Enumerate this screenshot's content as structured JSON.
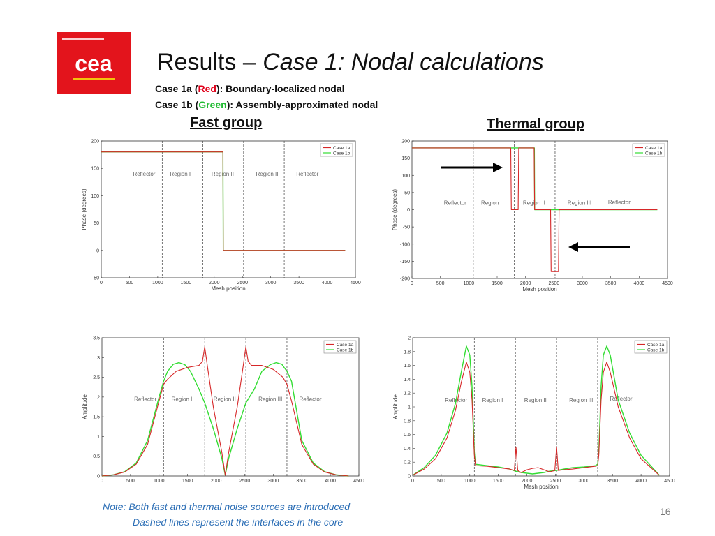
{
  "slide": {
    "title_main": "Results – ",
    "title_italic": "Case 1: Nodal calculations",
    "case1a": {
      "pre": "Case 1a (",
      "color_word": "Red",
      "post": "): Boundary-localized nodal"
    },
    "case1b": {
      "pre": "Case 1b (",
      "color_word": "Green",
      "post": "): Assembly-approximated nodal"
    },
    "fast_group": "Fast group",
    "thermal_group": "Thermal group",
    "note_line1": "Note: Both fast and thermal noise sources are introduced",
    "note_line2": "Dashed lines represent the interfaces in the core",
    "page_number": "16",
    "logo_text": "cea",
    "logo_color": "#e3141c"
  },
  "chart_data": [
    {
      "id": "fast-phase",
      "type": "line",
      "xlabel": "Mesh position",
      "ylabel": "Phase (degrees)",
      "xlim": [
        0,
        4500
      ],
      "ylim": [
        -50,
        200
      ],
      "xticks": [
        "0",
        "500",
        "1000",
        "1500",
        "2000",
        "2500",
        "3000",
        "3500",
        "4000",
        "4500"
      ],
      "yticks": [
        "-50",
        "0",
        "50",
        "100",
        "150",
        "200"
      ],
      "interfaces": [
        1080,
        1800,
        2520,
        3240
      ],
      "regions": [
        {
          "label": "Reflector",
          "x": 760,
          "y": 140
        },
        {
          "label": "Region I",
          "x": 1400,
          "y": 140
        },
        {
          "label": "Region II",
          "x": 2150,
          "y": 140
        },
        {
          "label": "Region III",
          "x": 2950,
          "y": 140
        },
        {
          "label": "Reflector",
          "x": 3650,
          "y": 140
        }
      ],
      "legend": {
        "position": "top-right",
        "entries": [
          "Case 1a",
          "Case 1b"
        ]
      },
      "series": [
        {
          "name": "Case 1a",
          "color": "#d62728",
          "x": [
            0,
            2155,
            2160,
            4320
          ],
          "y": [
            180,
            180,
            0,
            0
          ]
        },
        {
          "name": "Case 1b",
          "color": "#33dd33",
          "x": [
            0,
            2155,
            2160,
            4320
          ],
          "y": [
            180,
            180,
            0,
            0
          ]
        }
      ]
    },
    {
      "id": "thermal-phase",
      "type": "line",
      "xlabel": "Mesh position",
      "ylabel": "Phase (degrees)",
      "xlim": [
        0,
        4500
      ],
      "ylim": [
        -200,
        200
      ],
      "xticks": [
        "0",
        "500",
        "1000",
        "1500",
        "2000",
        "2500",
        "3000",
        "3500",
        "4000",
        "4500"
      ],
      "yticks": [
        "-200",
        "-150",
        "-100",
        "-50",
        "0",
        "50",
        "100",
        "150",
        "200"
      ],
      "interfaces": [
        1080,
        1800,
        2520,
        3240
      ],
      "regions": [
        {
          "label": "Reflector",
          "x": 760,
          "y": 20
        },
        {
          "label": "Region I",
          "x": 1400,
          "y": 20
        },
        {
          "label": "Region II",
          "x": 2150,
          "y": 20
        },
        {
          "label": "Region III",
          "x": 2950,
          "y": 20
        },
        {
          "label": "Reflector",
          "x": 3650,
          "y": 22
        }
      ],
      "legend": {
        "position": "top-right",
        "entries": [
          "Case 1a",
          "Case 1b"
        ]
      },
      "series": [
        {
          "name": "Case 1a",
          "color": "#d62728",
          "x": [
            0,
            1740,
            1750,
            1760,
            1860,
            1870,
            1880,
            2150,
            2160,
            2440,
            2450,
            2460,
            2570,
            2580,
            2590,
            4320
          ],
          "y": [
            180,
            180,
            0,
            0,
            0,
            0,
            180,
            180,
            0,
            0,
            -180,
            -180,
            -180,
            -180,
            0,
            0
          ]
        },
        {
          "name": "Case 1b",
          "color": "#33dd33",
          "x": [
            0,
            2155,
            2160,
            4320
          ],
          "y": [
            180,
            180,
            0,
            0
          ]
        }
      ]
    },
    {
      "id": "fast-amplitude",
      "type": "line",
      "xlabel": "",
      "ylabel": "Amplitude",
      "xlim": [
        0,
        4500
      ],
      "ylim": [
        0,
        3.5
      ],
      "xticks": [
        "0",
        "500",
        "1000",
        "1500",
        "2000",
        "2500",
        "3000",
        "3500",
        "4000",
        "4500"
      ],
      "yticks": [
        "0",
        "0.5",
        "1",
        "1.5",
        "2",
        "2.5",
        "3",
        "3.5"
      ],
      "interfaces": [
        1080,
        1800,
        2520,
        3240
      ],
      "regions": [
        {
          "label": "Reflector",
          "x": 760,
          "y": 1.95
        },
        {
          "label": "Region I",
          "x": 1400,
          "y": 1.95
        },
        {
          "label": "Region II",
          "x": 2150,
          "y": 1.95
        },
        {
          "label": "Region III",
          "x": 2950,
          "y": 1.95
        },
        {
          "label": "Reflector",
          "x": 3650,
          "y": 1.95
        }
      ],
      "legend": {
        "position": "top-right",
        "entries": [
          "Case 1a",
          "Case 1b"
        ]
      },
      "series": [
        {
          "name": "Case 1a",
          "color": "#d62728",
          "x": [
            0,
            200,
            400,
            600,
            800,
            1000,
            1080,
            1150,
            1300,
            1500,
            1700,
            1760,
            1800,
            1850,
            1950,
            2100,
            2160,
            2220,
            2370,
            2470,
            2520,
            2560,
            2620,
            2800,
            3000,
            3170,
            3240,
            3320,
            3500,
            3700,
            3900,
            4100,
            4320
          ],
          "y": [
            0,
            0.03,
            0.1,
            0.3,
            0.8,
            1.9,
            2.32,
            2.45,
            2.65,
            2.75,
            2.8,
            2.9,
            3.27,
            2.75,
            1.75,
            0.6,
            0.02,
            0.6,
            1.75,
            2.75,
            3.27,
            2.9,
            2.8,
            2.8,
            2.7,
            2.5,
            2.32,
            1.9,
            0.8,
            0.3,
            0.1,
            0.03,
            0
          ]
        },
        {
          "name": "Case 1b",
          "color": "#33dd33",
          "x": [
            0,
            200,
            400,
            600,
            800,
            1000,
            1080,
            1150,
            1250,
            1350,
            1450,
            1550,
            1700,
            1800,
            1950,
            2100,
            2160,
            2220,
            2370,
            2520,
            2670,
            2800,
            2950,
            3050,
            3150,
            3240,
            3320,
            3500,
            3700,
            3900,
            4100,
            4320
          ],
          "y": [
            0,
            0.03,
            0.11,
            0.33,
            0.9,
            2.0,
            2.4,
            2.65,
            2.83,
            2.87,
            2.82,
            2.65,
            2.2,
            1.85,
            1.2,
            0.45,
            0.02,
            0.45,
            1.2,
            1.85,
            2.2,
            2.65,
            2.82,
            2.87,
            2.83,
            2.65,
            2.4,
            0.9,
            0.33,
            0.11,
            0.03,
            0
          ]
        }
      ]
    },
    {
      "id": "thermal-amplitude",
      "type": "line",
      "xlabel": "Mesh position",
      "ylabel": "Amplitude",
      "xlim": [
        0,
        4500
      ],
      "ylim": [
        0,
        2
      ],
      "xticks": [
        "0",
        "500",
        "1000",
        "1500",
        "2000",
        "2500",
        "3000",
        "3500",
        "4000",
        "4500"
      ],
      "yticks": [
        "0",
        "0.2",
        "0.4",
        "0.6",
        "0.8",
        "1",
        "1.2",
        "1.4",
        "1.6",
        "1.8",
        "2"
      ],
      "interfaces": [
        1080,
        1800,
        2520,
        3240
      ],
      "regions": [
        {
          "label": "Reflector",
          "x": 760,
          "y": 1.1
        },
        {
          "label": "Region I",
          "x": 1400,
          "y": 1.1
        },
        {
          "label": "Region II",
          "x": 2150,
          "y": 1.1
        },
        {
          "label": "Region III",
          "x": 2950,
          "y": 1.1
        },
        {
          "label": "Reflector",
          "x": 3650,
          "y": 1.12
        }
      ],
      "legend": {
        "position": "top-right",
        "entries": [
          "Case 1a",
          "Case 1b"
        ]
      },
      "series": [
        {
          "name": "Case 1a",
          "color": "#d62728",
          "x": [
            0,
            200,
            400,
            600,
            750,
            850,
            940,
            1000,
            1040,
            1080,
            1100,
            1300,
            1500,
            1700,
            1780,
            1810,
            1840,
            1900,
            2000,
            2100,
            2200,
            2300,
            2400,
            2490,
            2520,
            2550,
            2650,
            2800,
            3000,
            3200,
            3240,
            3260,
            3300,
            3340,
            3400,
            3460,
            3600,
            3800,
            4000,
            4200,
            4320
          ],
          "y": [
            0.01,
            0.1,
            0.25,
            0.55,
            0.95,
            1.35,
            1.65,
            1.5,
            1.1,
            0.3,
            0.15,
            0.14,
            0.12,
            0.1,
            0.08,
            0.42,
            0.08,
            0.05,
            0.09,
            0.11,
            0.12,
            0.09,
            0.06,
            0.08,
            0.42,
            0.08,
            0.09,
            0.1,
            0.12,
            0.14,
            0.15,
            0.3,
            1.1,
            1.5,
            1.65,
            1.5,
            1.0,
            0.55,
            0.25,
            0.1,
            0.01
          ]
        },
        {
          "name": "Case 1b",
          "color": "#33dd33",
          "x": [
            0,
            200,
            400,
            600,
            750,
            850,
            940,
            1000,
            1040,
            1080,
            1100,
            1300,
            1500,
            1700,
            1800,
            1900,
            2000,
            2100,
            2200,
            2300,
            2400,
            2520,
            2650,
            2800,
            3000,
            3200,
            3240,
            3260,
            3300,
            3340,
            3400,
            3460,
            3600,
            3800,
            4000,
            4200,
            4320
          ],
          "y": [
            0.01,
            0.12,
            0.3,
            0.62,
            1.05,
            1.5,
            1.88,
            1.75,
            1.3,
            0.35,
            0.17,
            0.15,
            0.13,
            0.1,
            0.07,
            0.05,
            0.04,
            0.03,
            0.04,
            0.05,
            0.07,
            0.08,
            0.1,
            0.12,
            0.13,
            0.15,
            0.17,
            0.35,
            1.3,
            1.75,
            1.88,
            1.75,
            1.1,
            0.62,
            0.3,
            0.12,
            0.01
          ]
        }
      ]
    }
  ]
}
